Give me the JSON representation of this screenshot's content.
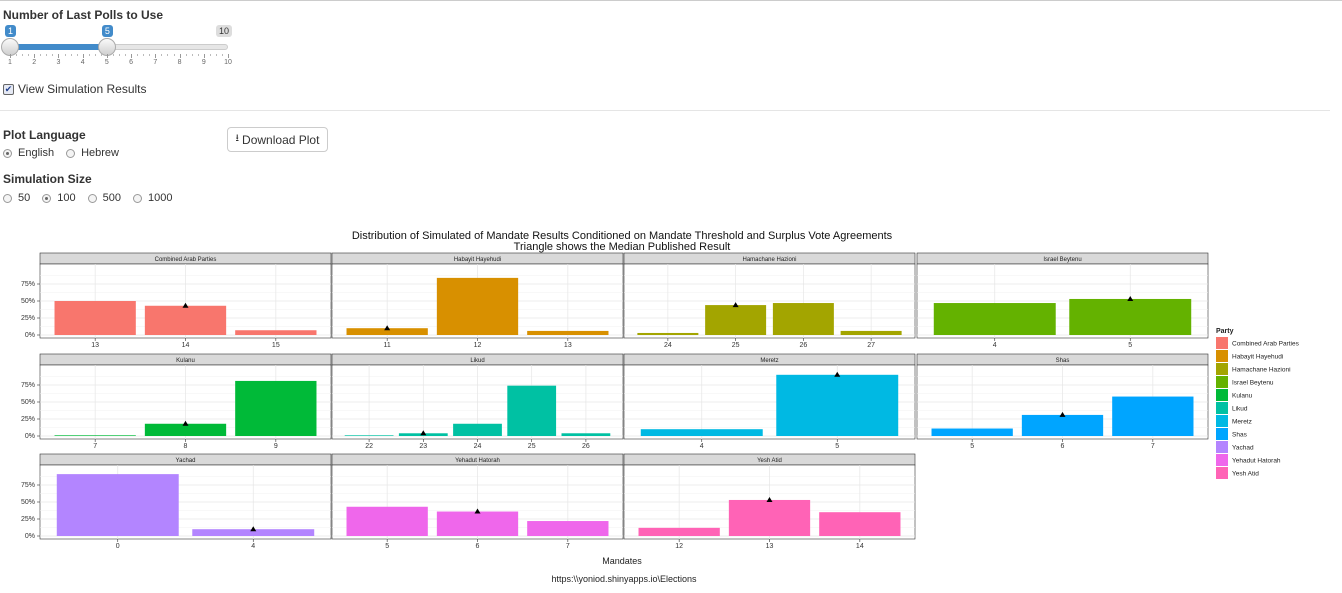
{
  "controls": {
    "polls_label": "Number of Last Polls to Use",
    "slider": {
      "min": 1,
      "max": 10,
      "from": 1,
      "to": 5,
      "from_label": "1",
      "to_label": "5",
      "max_label": "10",
      "ticks": [
        "1",
        "2",
        "3",
        "4",
        "5",
        "6",
        "7",
        "8",
        "9",
        "10"
      ]
    },
    "view_sim_label": "View Simulation Results",
    "view_sim_checked": true,
    "plot_language_label": "Plot Language",
    "language_options": [
      "English",
      "Hebrew"
    ],
    "language_selected": "English",
    "download_label": "Download Plot",
    "sim_size_label": "Simulation Size",
    "sim_size_options": [
      "50",
      "100",
      "500",
      "1000"
    ],
    "sim_size_selected": "100"
  },
  "chart_data": {
    "type": "bar",
    "title": "Distribution of Simulated of Mandate Results Conditioned on Mandate Threshold and Surplus Vote Agreements",
    "subtitle": "Triangle shows the Median Published Result",
    "xlabel": "Mandates",
    "ylabel": "",
    "ylim": [
      0,
      1
    ],
    "yticks": [
      "0%",
      "25%",
      "50%",
      "75%"
    ],
    "caption": "https:\\\\yoniod.shinyapps.io\\Elections",
    "legend_title": "Party",
    "legend_position": "right",
    "grid": true,
    "panels": [
      {
        "party": "Combined Arab Parties",
        "color": "#F8766D",
        "categories": [
          "13",
          "14",
          "15"
        ],
        "values": [
          0.5,
          0.43,
          0.07
        ],
        "median": "14"
      },
      {
        "party": "Habayit Hayehudi",
        "color": "#D89000",
        "categories": [
          "11",
          "12",
          "13"
        ],
        "values": [
          0.1,
          0.84,
          0.06
        ],
        "median": "11"
      },
      {
        "party": "Hamachane Hazioni",
        "color": "#A3A500",
        "categories": [
          "24",
          "25",
          "26",
          "27"
        ],
        "values": [
          0.03,
          0.44,
          0.47,
          0.06
        ],
        "median": "25"
      },
      {
        "party": "Israel Beytenu",
        "color": "#64B200",
        "categories": [
          "4",
          "5"
        ],
        "values": [
          0.47,
          0.53
        ],
        "median": "5"
      },
      {
        "party": "Kulanu",
        "color": "#00BA38",
        "categories": [
          "7",
          "8",
          "9"
        ],
        "values": [
          0.01,
          0.18,
          0.81
        ],
        "median": "8"
      },
      {
        "party": "Likud",
        "color": "#00C1A3",
        "categories": [
          "22",
          "23",
          "24",
          "25",
          "26"
        ],
        "values": [
          0.01,
          0.04,
          0.18,
          0.74,
          0.04
        ],
        "median": "23"
      },
      {
        "party": "Meretz",
        "color": "#00B9E3",
        "categories": [
          "4",
          "5"
        ],
        "values": [
          0.1,
          0.9
        ],
        "median": "5"
      },
      {
        "party": "Shas",
        "color": "#00A5FF",
        "categories": [
          "5",
          "6",
          "7"
        ],
        "values": [
          0.11,
          0.31,
          0.58
        ],
        "median": "6"
      },
      {
        "party": "Yachad",
        "color": "#B385FF",
        "categories": [
          "0",
          "4"
        ],
        "values": [
          0.91,
          0.1
        ],
        "median": "4"
      },
      {
        "party": "Yehadut Hatorah",
        "color": "#EF67EB",
        "categories": [
          "5",
          "6",
          "7"
        ],
        "values": [
          0.43,
          0.36,
          0.22
        ],
        "median": "6"
      },
      {
        "party": "Yesh Atid",
        "color": "#FF63B6",
        "categories": [
          "12",
          "13",
          "14"
        ],
        "values": [
          0.12,
          0.53,
          0.35
        ],
        "median": "13"
      }
    ]
  }
}
